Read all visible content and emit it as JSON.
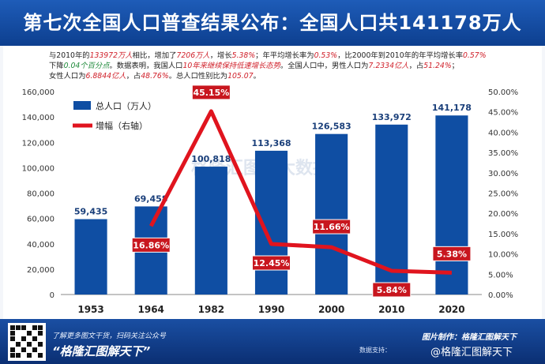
{
  "header": {
    "title": "第七次全国人口普查结果公布：全国人口共141178万人"
  },
  "intro": {
    "l1_a": "与2010年的",
    "l1_b": "133972万人",
    "l1_c": "相比，增加了",
    "l1_d": "7206万人",
    "l1_e": "，增长",
    "l1_f": "5.38%",
    "l1_g": "；年平均增长率为",
    "l1_h": "0.53%",
    "l1_i": "，比2000年到2010年的年平均增长率",
    "l1_j": "0.57%",
    "l2_a": "下降",
    "l2_b": "0.04个百分点",
    "l2_c": "。数据表明，我国人口",
    "l2_d": "10年来继续保持低速增长态势",
    "l2_e": "。全国人口中，男性人口为",
    "l2_f": "7.2334亿人",
    "l2_g": "，占",
    "l2_h": "51.24%",
    "l2_i": "；",
    "l3_a": "女性人口为",
    "l3_b": "6.8844亿人",
    "l3_c": "，占",
    "l3_d": "48.76%",
    "l3_e": "。总人口性别比为",
    "l3_f": "105.07",
    "l3_g": "。"
  },
  "watermark": "格隆汇图股大数据",
  "colors": {
    "bar": "#0f4ea3",
    "line": "#e0141e",
    "header": "#1553ac"
  },
  "chart_data": {
    "type": "bar",
    "categories": [
      "1953",
      "1964",
      "1982",
      "1990",
      "2000",
      "2010",
      "2020"
    ],
    "series": [
      {
        "name": "总人口（万人）",
        "type": "bar",
        "axis": "left",
        "values": [
          59435,
          69458,
          100818,
          113368,
          126583,
          133972,
          141178
        ],
        "labels": [
          "59,435",
          "69,458",
          "100,818",
          "113,368",
          "126,583",
          "133,972",
          "141,178"
        ]
      },
      {
        "name": "增幅（右轴）",
        "type": "line",
        "axis": "right",
        "x": [
          "1964",
          "1982",
          "1990",
          "2000",
          "2010",
          "2020"
        ],
        "values": [
          16.86,
          45.15,
          12.45,
          11.66,
          5.84,
          5.38
        ],
        "labels": [
          "16.86%",
          "45.15%",
          "12.45%",
          "11.66%",
          "5.84%",
          "5.38%"
        ]
      }
    ],
    "y_left": {
      "range": [
        0,
        160000
      ],
      "ticks": [
        "0",
        "20,000",
        "40,000",
        "60,000",
        "80,000",
        "100,000",
        "120,000",
        "140,000",
        "160,000"
      ]
    },
    "y_right": {
      "range": [
        0,
        50
      ],
      "ticks": [
        "0.00%",
        "5.00%",
        "10.00%",
        "15.00%",
        "20.00%",
        "25.00%",
        "30.00%",
        "35.00%",
        "40.00%",
        "45.00%",
        "50.00%"
      ]
    },
    "legend_position": "top-left",
    "grid": false
  },
  "footer": {
    "sub": "了解更多图文干货，扫码关注公众号",
    "brand": "“格隆汇图解天下”",
    "credit": "图片制作：格隆汇图解天下",
    "support": "数据支持：",
    "weibo": "@格隆汇图解天下"
  }
}
